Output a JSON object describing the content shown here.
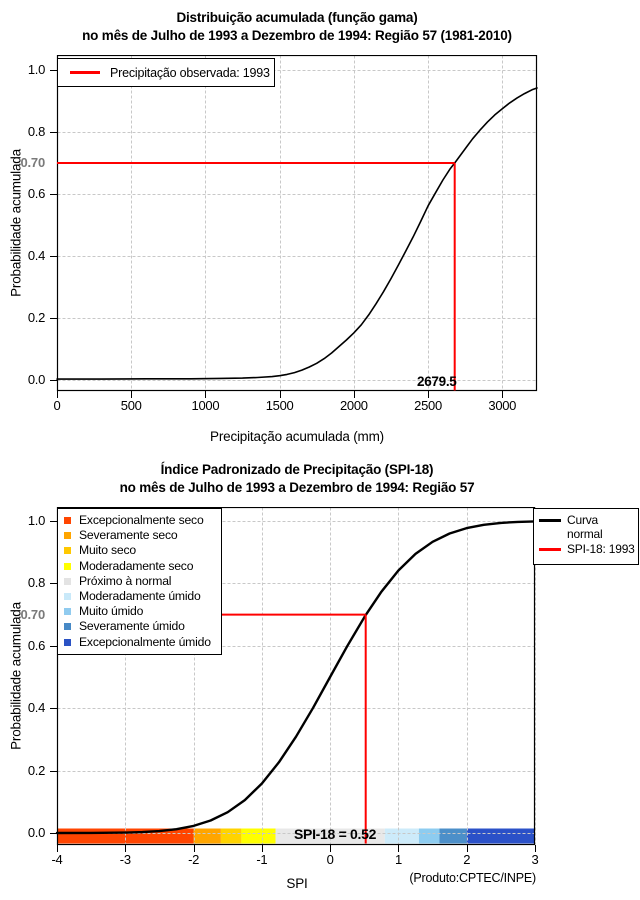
{
  "grid_color": "#c8c8c8",
  "chart_data": [
    {
      "type": "line",
      "title": "Distribuição acumulada (função gama)",
      "subtitle": "no mês de Julho de 1993 a Dezembro de 1994: Região 57 (1981-2010)",
      "xlabel": "Precipitação acumulada (mm)",
      "ylabel": "Probabilidade acumulada",
      "xlim": [
        0,
        3234
      ],
      "ylim": [
        0,
        1
      ],
      "grid": true,
      "legend_position": "top-left",
      "legend": {
        "items": [
          {
            "label": "Precipitação observada: 1993",
            "color": "#ff0000"
          }
        ]
      },
      "x_ticks": [
        {
          "label": "0",
          "value": 0
        },
        {
          "label": "500",
          "value": 500
        },
        {
          "label": "1000",
          "value": 1000
        },
        {
          "label": "1500",
          "value": 1500
        },
        {
          "label": "2000",
          "value": 2000
        },
        {
          "label": "2500",
          "value": 2500
        },
        {
          "label": "3000",
          "value": 3000
        }
      ],
      "y_ticks": [
        {
          "label": "0.0",
          "value": 0.0
        },
        {
          "label": "0.2",
          "value": 0.2
        },
        {
          "label": "0.4",
          "value": 0.4
        },
        {
          "label": "0.6",
          "value": 0.6
        },
        {
          "label": "0.8",
          "value": 0.8
        },
        {
          "label": "1.0",
          "value": 1.0
        }
      ],
      "highlight": {
        "x": 2679.5,
        "y": 0.7,
        "y_label": "0.70",
        "x_label": "2679.5",
        "color": "#ff0000"
      },
      "series": [
        {
          "name": "Distribuição gama acumulada",
          "color": "#000000",
          "points": [
            [
              0,
              0.003
            ],
            [
              300,
              0.003
            ],
            [
              600,
              0.004
            ],
            [
              900,
              0.004
            ],
            [
              1100,
              0.005
            ],
            [
              1250,
              0.006
            ],
            [
              1350,
              0.008
            ],
            [
              1450,
              0.011
            ],
            [
              1500,
              0.014
            ],
            [
              1550,
              0.018
            ],
            [
              1600,
              0.024
            ],
            [
              1650,
              0.032
            ],
            [
              1700,
              0.042
            ],
            [
              1750,
              0.054
            ],
            [
              1800,
              0.069
            ],
            [
              1850,
              0.087
            ],
            [
              1900,
              0.108
            ],
            [
              1950,
              0.129
            ],
            [
              2000,
              0.152
            ],
            [
              2050,
              0.178
            ],
            [
              2100,
              0.21
            ],
            [
              2150,
              0.246
            ],
            [
              2200,
              0.285
            ],
            [
              2250,
              0.327
            ],
            [
              2300,
              0.371
            ],
            [
              2350,
              0.416
            ],
            [
              2400,
              0.462
            ],
            [
              2450,
              0.511
            ],
            [
              2500,
              0.562
            ],
            [
              2550,
              0.604
            ],
            [
              2600,
              0.645
            ],
            [
              2650,
              0.682
            ],
            [
              2679.5,
              0.7
            ],
            [
              2720,
              0.726
            ],
            [
              2760,
              0.752
            ],
            [
              2800,
              0.778
            ],
            [
              2850,
              0.806
            ],
            [
              2900,
              0.832
            ],
            [
              2950,
              0.855
            ],
            [
              3000,
              0.875
            ],
            [
              3050,
              0.894
            ],
            [
              3100,
              0.91
            ],
            [
              3150,
              0.924
            ],
            [
              3200,
              0.936
            ],
            [
              3234,
              0.942
            ]
          ]
        }
      ]
    },
    {
      "type": "line",
      "title": "Índice Padronizado de Precipitação (SPI-18)",
      "subtitle": "no mês de Julho de 1993 a Dezembro de 1994: Região 57",
      "xlabel": "SPI",
      "ylabel": "Probabilidade acumulada",
      "xlim": [
        -4,
        3
      ],
      "ylim": [
        0,
        1
      ],
      "grid": true,
      "footnote": "(Produto:CPTEC/INPE)",
      "categories_legend": [
        {
          "label": "Excepcionalmente seco",
          "color": "#ff4500"
        },
        {
          "label": "Severamente seco",
          "color": "#ffa500"
        },
        {
          "label": "Muito seco",
          "color": "#ffc800"
        },
        {
          "label": "Moderadamente seco",
          "color": "#ffff00"
        },
        {
          "label": "Próximo à normal",
          "color": "#e3e3e3"
        },
        {
          "label": "Moderadamente úmido",
          "color": "#c9e9f9"
        },
        {
          "label": "Muito úmido",
          "color": "#90cbef"
        },
        {
          "label": "Severamente úmido",
          "color": "#4789c6"
        },
        {
          "label": "Excepcionalmente úmido",
          "color": "#2a52c4"
        }
      ],
      "series_legend": [
        {
          "label": "Curva normal",
          "color": "#000000"
        },
        {
          "label": "SPI-18: 1993",
          "color": "#ff0000"
        }
      ],
      "x_ticks": [
        {
          "label": "-4",
          "value": -4
        },
        {
          "label": "-3",
          "value": -3
        },
        {
          "label": "-2",
          "value": -2
        },
        {
          "label": "-1",
          "value": -1
        },
        {
          "label": "0",
          "value": 0
        },
        {
          "label": "1",
          "value": 1
        },
        {
          "label": "2",
          "value": 2
        },
        {
          "label": "3",
          "value": 3
        }
      ],
      "y_ticks": [
        {
          "label": "0.0",
          "value": 0.0
        },
        {
          "label": "0.2",
          "value": 0.2
        },
        {
          "label": "0.4",
          "value": 0.4
        },
        {
          "label": "0.6",
          "value": 0.6
        },
        {
          "label": "0.8",
          "value": 0.8
        },
        {
          "label": "1.0",
          "value": 1.0
        }
      ],
      "highlight": {
        "x": 0.52,
        "y": 0.7,
        "y_label": "0.70",
        "annotation": "SPI-18 = 0.52",
        "color": "#ff0000"
      },
      "band": [
        {
          "from": -4,
          "to": -2,
          "color": "#ff4500"
        },
        {
          "from": -2,
          "to": -1.6,
          "color": "#ffa500"
        },
        {
          "from": -1.6,
          "to": -1.3,
          "color": "#ffd300"
        },
        {
          "from": -1.3,
          "to": -0.8,
          "color": "#ffff00"
        },
        {
          "from": -0.8,
          "to": 0.8,
          "color": "#e8e8e8"
        },
        {
          "from": 0.8,
          "to": 1.3,
          "color": "#cdebfa"
        },
        {
          "from": 1.3,
          "to": 1.6,
          "color": "#8dccf0"
        },
        {
          "from": 1.6,
          "to": 2.0,
          "color": "#4c8fc9"
        },
        {
          "from": 2.0,
          "to": 3.0,
          "color": "#2b51c8"
        }
      ],
      "series": [
        {
          "name": "Curva normal",
          "color": "#000000",
          "points": [
            [
              -4,
              3e-05
            ],
            [
              -3.5,
              0.0002
            ],
            [
              -3,
              0.0013
            ],
            [
              -2.75,
              0.003
            ],
            [
              -2.5,
              0.0062
            ],
            [
              -2.25,
              0.0122
            ],
            [
              -2,
              0.0228
            ],
            [
              -1.75,
              0.0401
            ],
            [
              -1.5,
              0.0668
            ],
            [
              -1.25,
              0.1056
            ],
            [
              -1,
              0.1587
            ],
            [
              -0.75,
              0.2266
            ],
            [
              -0.5,
              0.3085
            ],
            [
              -0.25,
              0.4013
            ],
            [
              0,
              0.5
            ],
            [
              0.25,
              0.5987
            ],
            [
              0.5,
              0.6915
            ],
            [
              0.52,
              0.6985
            ],
            [
              0.75,
              0.7734
            ],
            [
              1,
              0.8413
            ],
            [
              1.25,
              0.8944
            ],
            [
              1.5,
              0.9332
            ],
            [
              1.75,
              0.9599
            ],
            [
              2,
              0.9772
            ],
            [
              2.25,
              0.9878
            ],
            [
              2.5,
              0.9938
            ],
            [
              2.75,
              0.997
            ],
            [
              3,
              0.9987
            ]
          ]
        }
      ]
    }
  ]
}
